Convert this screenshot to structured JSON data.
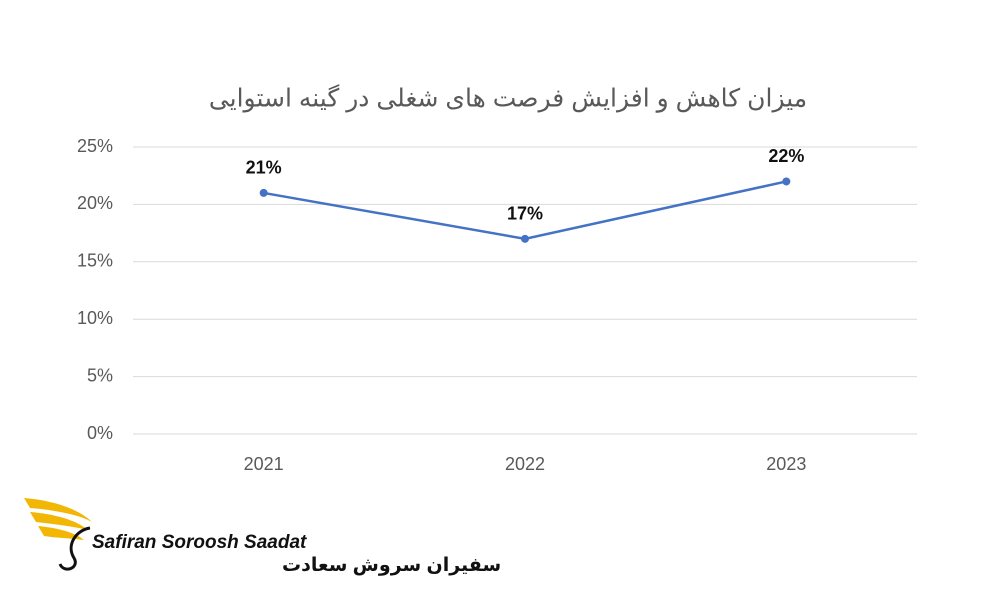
{
  "chart_data": {
    "type": "line",
    "title": "میزان کاهش و افزایش فرصت های شغلی در گینه استوایی",
    "categories": [
      "2021",
      "2022",
      "2023"
    ],
    "values": [
      21,
      17,
      22
    ],
    "value_labels": [
      "21%",
      "17%",
      "22%"
    ],
    "color": "#4472c4",
    "ylim": [
      0,
      25
    ],
    "yticks": [
      {
        "value": 0,
        "label": "0%"
      },
      {
        "value": 5,
        "label": "5%"
      },
      {
        "value": 10,
        "label": "10%"
      },
      {
        "value": 15,
        "label": "15%"
      },
      {
        "value": 20,
        "label": "20%"
      },
      {
        "value": 25,
        "label": "25%"
      }
    ],
    "grid": true
  },
  "logo": {
    "name_en": "Safiran Soroosh Saadat",
    "name_fa": "سفیران سروش سعادت"
  }
}
